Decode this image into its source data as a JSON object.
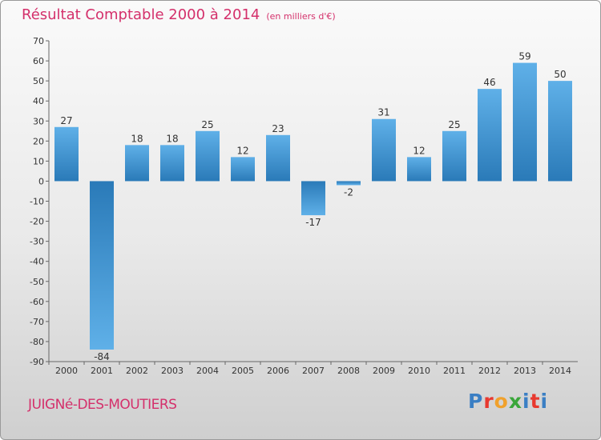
{
  "header": {
    "title": "Résultat Comptable 2000 à 2014",
    "subtitle": "(en milliers d'€)"
  },
  "footer": {
    "commune": "JUIGNé-DES-MOUTIERS",
    "logo_letters": [
      "P",
      "r",
      "o",
      "x",
      "i",
      "t",
      "i"
    ],
    "logo_colors": [
      "#3b7fc4",
      "#e8392f",
      "#f0a12c",
      "#3aa63a",
      "#3b7fc4",
      "#e8392f",
      "#3b7fc4"
    ]
  },
  "colors": {
    "bar_dark": "#2a7ab8",
    "bar_light": "#5fb0e8",
    "title": "#d4306b"
  },
  "chart_data": {
    "type": "bar",
    "categories": [
      "2000",
      "2001",
      "2002",
      "2003",
      "2004",
      "2005",
      "2006",
      "2007",
      "2008",
      "2009",
      "2010",
      "2011",
      "2012",
      "2013",
      "2014"
    ],
    "values": [
      27,
      -84,
      18,
      18,
      25,
      12,
      23,
      -17,
      -2,
      31,
      12,
      25,
      46,
      59,
      50
    ],
    "ylim": [
      -90,
      70
    ],
    "yticks": [
      70,
      60,
      50,
      40,
      30,
      20,
      10,
      0,
      -10,
      -20,
      -30,
      -40,
      -50,
      -60,
      -70,
      -80,
      -90
    ],
    "grid": false,
    "title": "Résultat Comptable 2000 à 2014",
    "xlabel": "",
    "ylabel": ""
  }
}
